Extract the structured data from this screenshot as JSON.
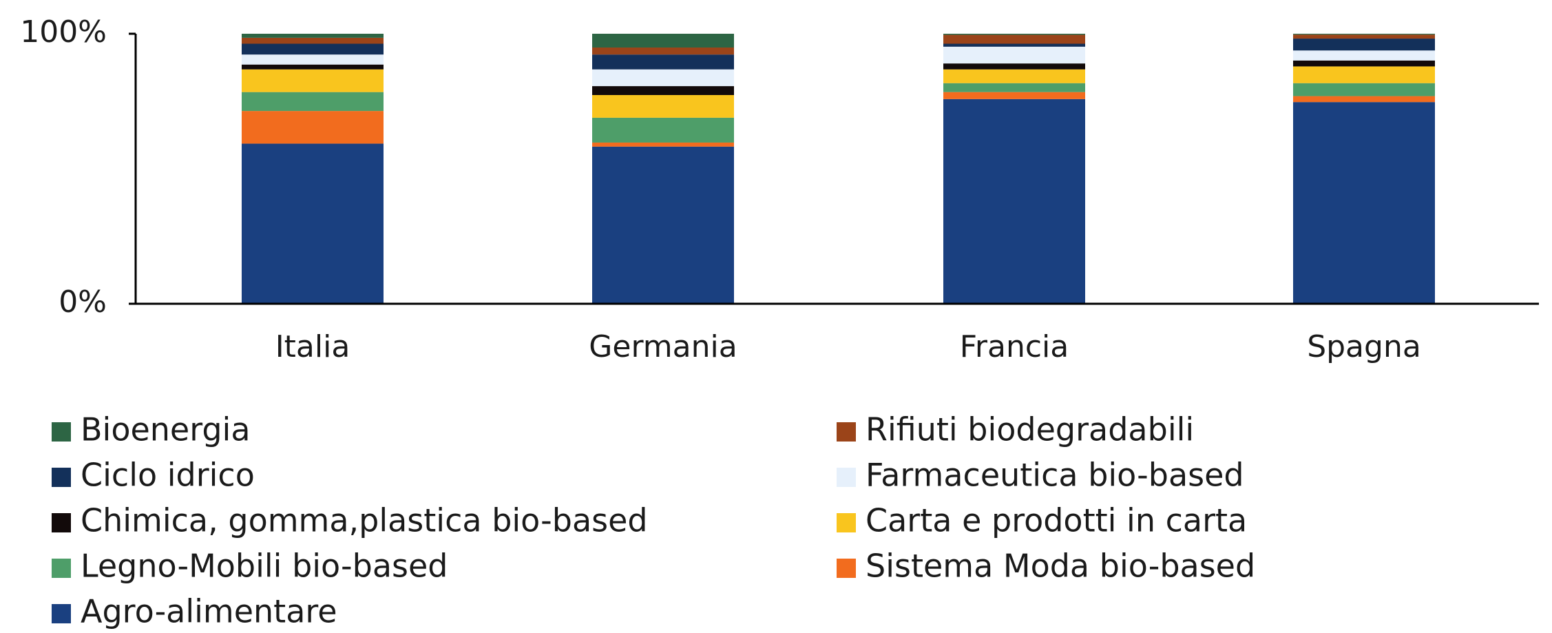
{
  "chart_data": {
    "type": "stacked_bar",
    "categories": [
      "Italia",
      "Germania",
      "Francia",
      "Spagna"
    ],
    "series": [
      {
        "name": "Agro-alimentare",
        "color": "#1a4080",
        "values": [
          59.3,
          58.2,
          75.8,
          74.7
        ]
      },
      {
        "name": "Sistema Moda bio-based",
        "color": "#f26c1e",
        "values": [
          12.1,
          1.5,
          2.6,
          2.2
        ]
      },
      {
        "name": "Legno-Mobili bio-based",
        "color": "#4e9e69",
        "values": [
          7.0,
          9.2,
          3.3,
          4.8
        ]
      },
      {
        "name": "Carta e prodotti in carta",
        "color": "#f9c51e",
        "values": [
          8.4,
          8.4,
          5.1,
          6.2
        ]
      },
      {
        "name": "Chimica, gomma,plastica bio-based",
        "color": "#120a0a",
        "values": [
          1.8,
          3.3,
          2.2,
          2.2
        ]
      },
      {
        "name": "Farmaceutica bio-based",
        "color": "#e6f0fb",
        "values": [
          3.7,
          6.2,
          6.2,
          3.7
        ]
      },
      {
        "name": "Ciclo idrico",
        "color": "#13305a",
        "values": [
          4.0,
          5.5,
          1.1,
          4.4
        ]
      },
      {
        "name": "Rifiuti biodegradabili",
        "color": "#9b4419",
        "values": [
          2.2,
          2.6,
          3.3,
          1.5
        ]
      },
      {
        "name": "Bioenergia",
        "color": "#2d6544",
        "values": [
          1.5,
          5.1,
          0.4,
          0.3
        ]
      }
    ],
    "ylim": [
      0,
      100
    ],
    "yticks": [
      {
        "value": 0,
        "label": "0%"
      },
      {
        "value": 100,
        "label": "100%"
      }
    ],
    "grid": false
  }
}
